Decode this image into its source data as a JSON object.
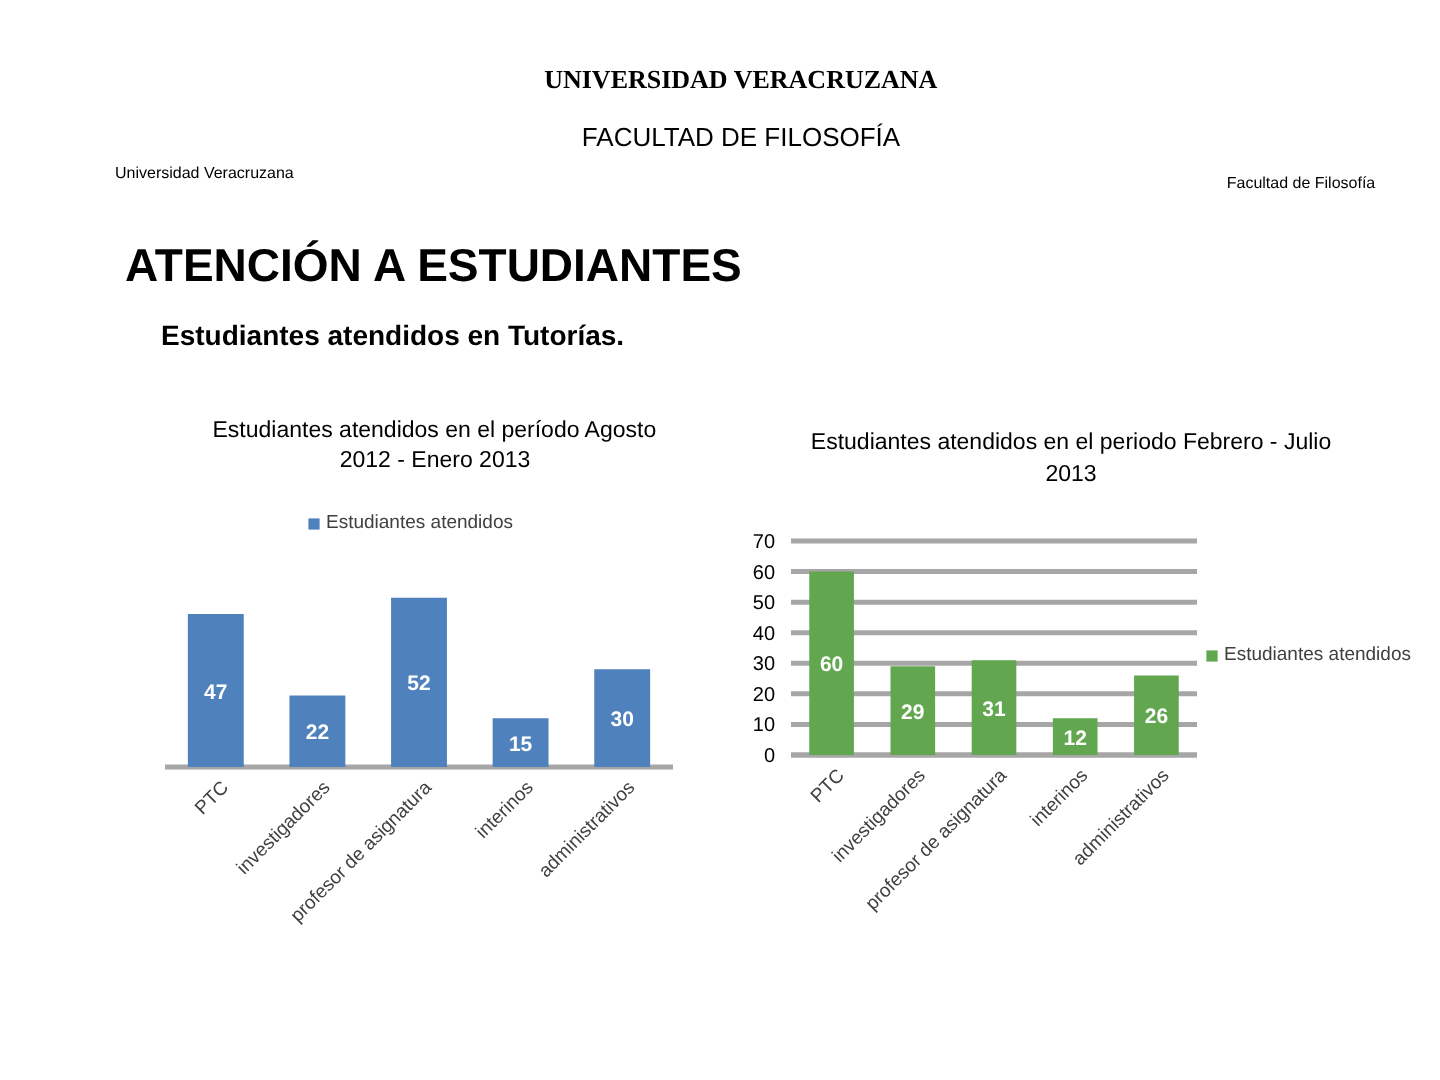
{
  "chart_data": [
    {
      "type": "other",
      "title": "ATENCIÓN A ESTUDIANTES",
      "subtitle": "Estudiantes atendidos en Tutorías.",
      "annotations": [
        "UNIVERSIDAD VERACRUZANA",
        "FACULTAD DE FILOSOFÍA",
        "Universidad Veracruzana",
        "Facultad de Filosofía"
      ]
    },
    {
      "type": "bar",
      "title": "Estudiantes atendidos en el período Agosto 2012 - Enero 2013",
      "categories": [
        "PTC",
        "investigadores",
        "profesor de asignatura",
        "interinos",
        "administrativos"
      ],
      "series": [
        {
          "name": "Estudiantes atendidos",
          "color": "#4f81bd",
          "values": [
            47,
            22,
            52,
            15,
            30
          ]
        }
      ],
      "data_labels": true,
      "legend": "top",
      "tick_labels": "x"
    },
    {
      "type": "bar",
      "title": "Estudiantes atendidos en el periodo Febrero - Julio 2013",
      "categories": [
        "PTC",
        "investigadores",
        "profesor de asignatura",
        "interinos",
        "administrativos"
      ],
      "series": [
        {
          "name": "Estudiantes atendidos",
          "color": "#62a74f",
          "values": [
            60,
            29,
            31,
            12,
            26
          ]
        }
      ],
      "data_labels": true,
      "legend": "right",
      "ylim": [
        0,
        70
      ],
      "yticks": [
        0,
        10,
        20,
        30,
        40,
        50,
        60,
        70
      ],
      "grid": "y"
    }
  ]
}
